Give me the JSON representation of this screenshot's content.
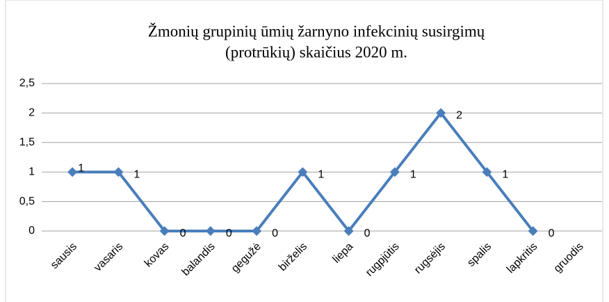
{
  "chart_data": {
    "type": "line",
    "title": [
      "Žmonių grupinių ūmių žarnyno infekcinių susirgimų",
      "(protrūkių) skaičius 2020 m."
    ],
    "categories": [
      "sausis",
      "vasaris",
      "kovas",
      "balandis",
      "gegužė",
      "birželis",
      "liepa",
      "rugpjūtis",
      "rugsėjis",
      "spalis",
      "lapkritis",
      "gruodis"
    ],
    "values": [
      1,
      1,
      0,
      0,
      0,
      1,
      0,
      1,
      2,
      1,
      0,
      null
    ],
    "color": "#4a7ebb",
    "ylim": [
      0,
      2.5
    ],
    "yticks": [
      0,
      {
        "value": 0.5,
        "label": "0,5"
      },
      1,
      {
        "value": 1.5,
        "label": "1,5"
      },
      2,
      {
        "value": 2.5,
        "label": "2,5"
      }
    ],
    "grid": true
  }
}
